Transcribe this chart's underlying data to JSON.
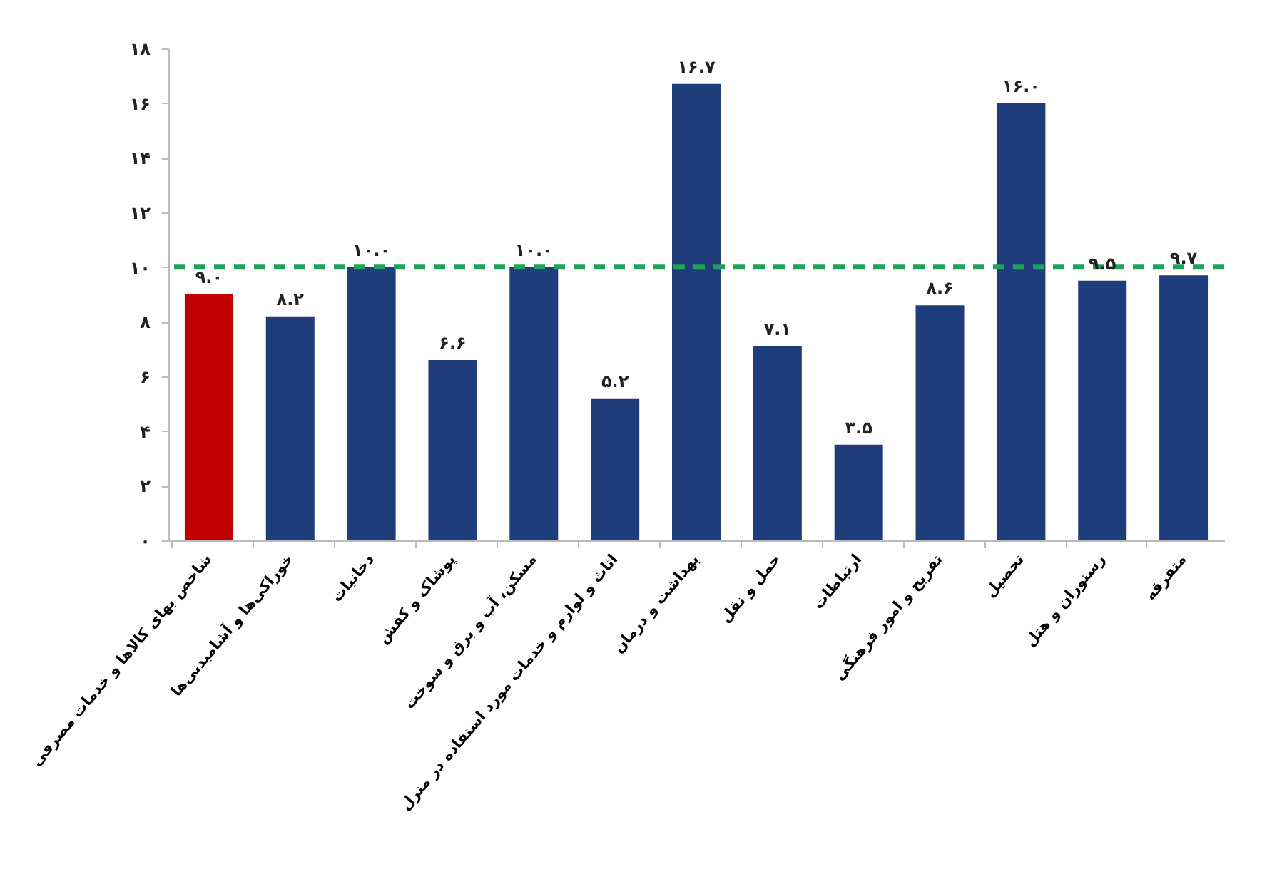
{
  "chart_data": {
    "type": "bar",
    "categories": [
      "شاخص بهای کالاها و خدمات مصرفی",
      "خوراکی‌ها و آشامیدنی‌ها",
      "دخانیات",
      "پوشاک و کفش",
      "مسکن، آب و برق و سوخت",
      "اثاث و لوازم و خدمات مورد استفاده در منزل",
      "بهداشت و درمان",
      "حمل و نقل",
      "ارتباطات",
      "تفریح و امور فرهنگی",
      "تحصیل",
      "رستوران و هتل",
      "متفرقه"
    ],
    "values": [
      9.0,
      8.2,
      10.0,
      6.6,
      10.0,
      5.2,
      16.7,
      7.1,
      3.5,
      8.6,
      16.0,
      9.5,
      9.7
    ],
    "colors": [
      "#c00000",
      "#1f3d7a",
      "#1f3d7a",
      "#1f3d7a",
      "#1f3d7a",
      "#1f3d7a",
      "#1f3d7a",
      "#1f3d7a",
      "#1f3d7a",
      "#1f3d7a",
      "#1f3d7a",
      "#1f3d7a",
      "#1f3d7a"
    ],
    "value_labels": [
      "۹.۰",
      "۸.۲",
      "۱۰.۰",
      "۶.۶",
      "۱۰.۰",
      "۵.۲",
      "۱۶.۷",
      "۷.۱",
      "۳.۵",
      "۸.۶",
      "۱۶.۰",
      "۹.۵",
      "۹.۷"
    ],
    "ylim": [
      0,
      18
    ],
    "yticks": [
      {
        "value": 0,
        "label": "۰"
      },
      {
        "value": 2,
        "label": "۲"
      },
      {
        "value": 4,
        "label": "۴"
      },
      {
        "value": 6,
        "label": "۶"
      },
      {
        "value": 8,
        "label": "۸"
      },
      {
        "value": 10,
        "label": "۱۰"
      },
      {
        "value": 12,
        "label": "۱۲"
      },
      {
        "value": 14,
        "label": "۱۴"
      },
      {
        "value": 16,
        "label": "۱۶"
      },
      {
        "value": 18,
        "label": "۱۸"
      }
    ],
    "ref_lines": [
      {
        "axis": "y",
        "value": 10,
        "color": "#1fa35a",
        "line_style": "dashed"
      }
    ],
    "grid": false
  }
}
